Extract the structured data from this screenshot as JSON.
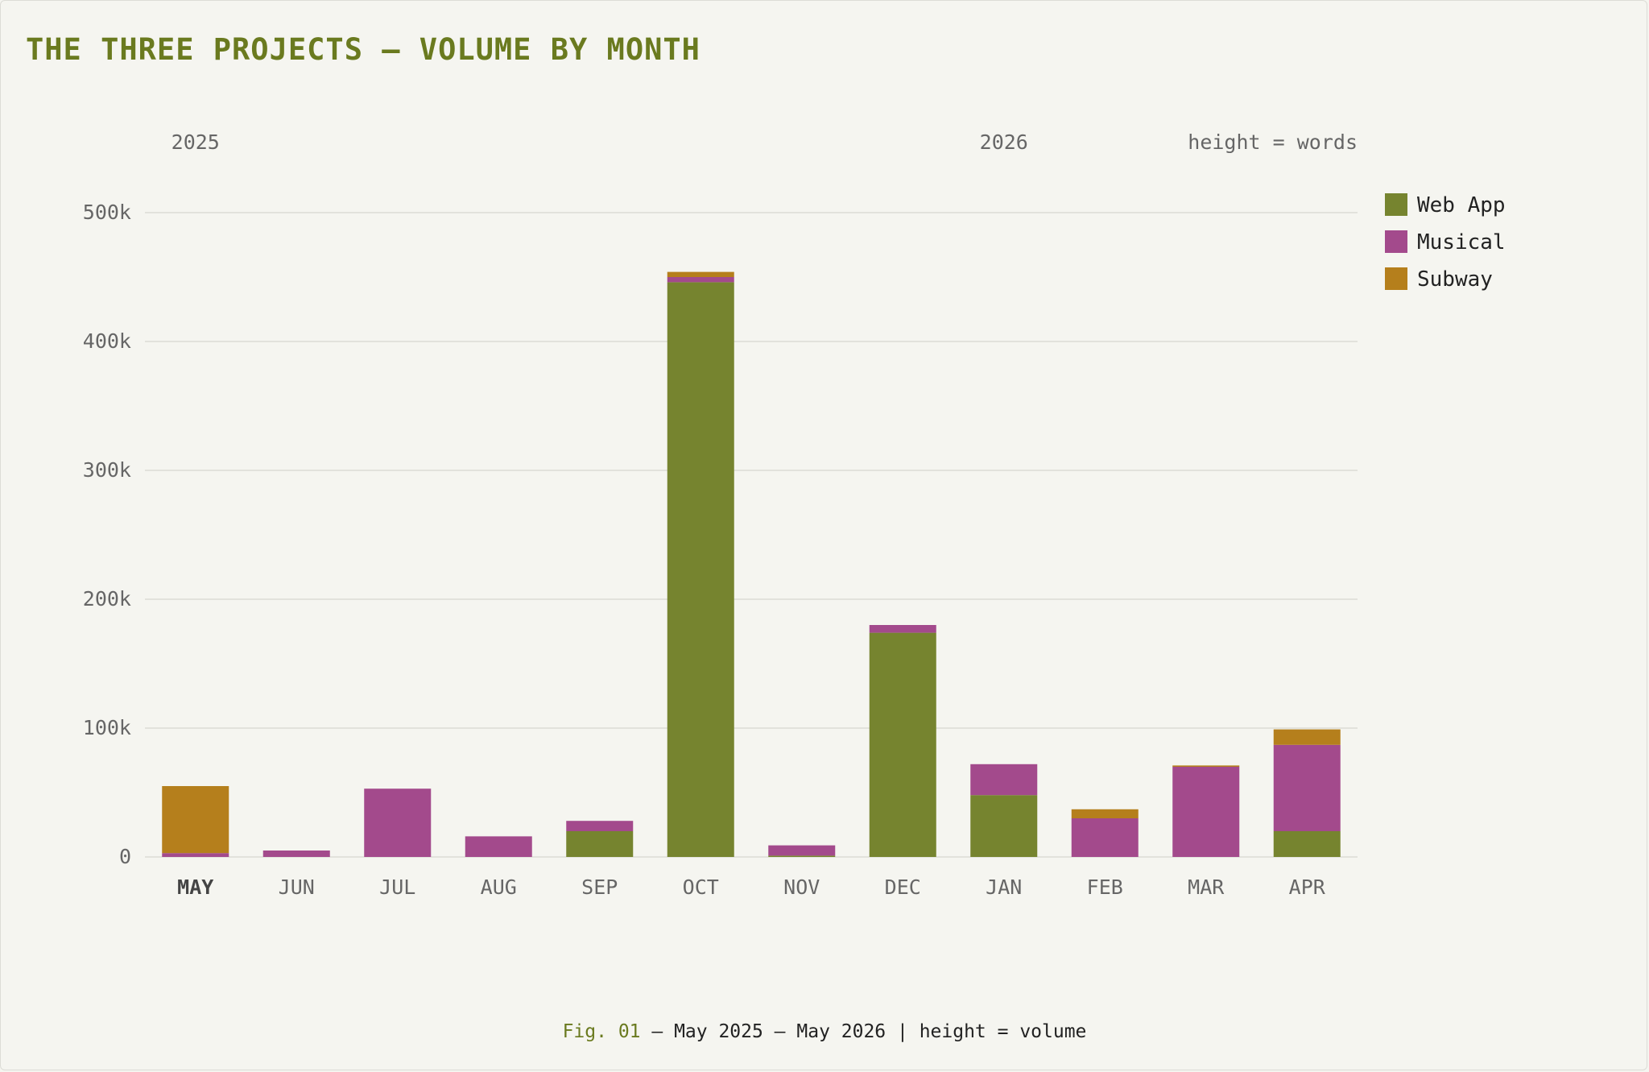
{
  "title": "THE THREE PROJECTS — VOLUME BY MONTH",
  "caption": {
    "fig": "Fig. 01",
    "sep": " — ",
    "text": "May 2025 – May 2026 | height = volume"
  },
  "chart_data": {
    "type": "bar",
    "stacked": true,
    "year_labels": [
      {
        "label": "2025",
        "category": "MAY"
      },
      {
        "label": "2026",
        "category": "JAN"
      }
    ],
    "note": "height = words",
    "categories": [
      "MAY",
      "JUN",
      "JUL",
      "AUG",
      "SEP",
      "OCT",
      "NOV",
      "DEC",
      "JAN",
      "FEB",
      "MAR",
      "APR"
    ],
    "series": [
      {
        "name": "Web App",
        "color": "#76842f",
        "values": [
          0,
          0,
          0,
          0,
          20000,
          446000,
          1000,
          174000,
          48000,
          0,
          0,
          20000
        ]
      },
      {
        "name": "Musical",
        "color": "#a34a8c",
        "values": [
          3000,
          5000,
          53000,
          16000,
          8000,
          4000,
          8000,
          6000,
          24000,
          30000,
          70000,
          67000
        ]
      },
      {
        "name": "Subway",
        "color": "#b57f1c",
        "values": [
          52000,
          0,
          0,
          0,
          0,
          4000,
          0,
          0,
          0,
          7000,
          1000,
          12000
        ]
      }
    ],
    "yticks": [
      0,
      100000,
      200000,
      300000,
      400000,
      500000
    ],
    "ytick_labels": [
      "0",
      "100k",
      "200k",
      "300k",
      "400k",
      "500k"
    ],
    "ylim": [
      0,
      500000
    ],
    "grid": true,
    "legend": "right"
  }
}
